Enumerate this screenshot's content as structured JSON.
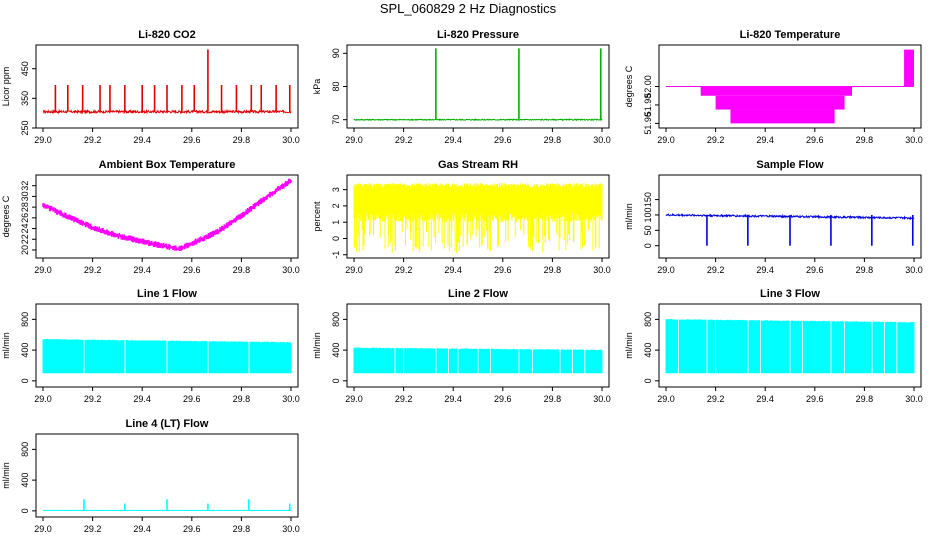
{
  "page": {
    "title": "SPL_060829  2 Hz Diagnostics"
  },
  "chart_data": [
    {
      "type": "line",
      "title": "Li-820 CO2",
      "xlabel": "",
      "ylabel": "Licor ppm",
      "xlim": [
        29.0,
        30.0
      ],
      "ylim": [
        250,
        530
      ],
      "xticks": [
        29.0,
        29.2,
        29.4,
        29.6,
        29.8,
        30.0
      ],
      "xtick_labels": [
        "29.0",
        "29.2",
        "29.4",
        "29.6",
        "29.8",
        "30.0"
      ],
      "yticks": [
        250,
        350,
        450
      ],
      "ytick_labels": [
        "250",
        "350",
        "450"
      ],
      "color": "#e00000",
      "style": "base",
      "series": [
        {
          "name": "CO2",
          "baseline": 305,
          "noise": 8,
          "drift": 0,
          "spikes": [
            [
              29.05,
              395
            ],
            [
              29.1,
              395
            ],
            [
              29.16,
              395
            ],
            [
              29.23,
              395
            ],
            [
              29.27,
              395
            ],
            [
              29.33,
              395
            ],
            [
              29.4,
              395
            ],
            [
              29.45,
              395
            ],
            [
              29.5,
              395
            ],
            [
              29.56,
              395
            ],
            [
              29.61,
              395
            ],
            [
              29.665,
              515
            ],
            [
              29.72,
              395
            ],
            [
              29.78,
              395
            ],
            [
              29.84,
              395
            ],
            [
              29.88,
              395
            ],
            [
              29.94,
              395
            ],
            [
              29.995,
              395
            ]
          ]
        }
      ]
    },
    {
      "type": "line",
      "title": "Li-820 Pressure",
      "xlabel": "",
      "ylabel": "kPa",
      "xlim": [
        29.0,
        30.0
      ],
      "ylim": [
        67.5,
        92.5
      ],
      "xticks": [
        29.0,
        29.2,
        29.4,
        29.6,
        29.8,
        30.0
      ],
      "xtick_labels": [
        "29.0",
        "29.2",
        "29.4",
        "29.6",
        "29.8",
        "30.0"
      ],
      "yticks": [
        70,
        80,
        90
      ],
      "ytick_labels": [
        "70",
        "80",
        "90"
      ],
      "color": "#00b000",
      "style": "base",
      "series": [
        {
          "name": "Pressure",
          "baseline": 70,
          "noise": 0.3,
          "drift": 0,
          "spikes": [
            [
              29.33,
              91.5
            ],
            [
              29.665,
              91.5
            ],
            [
              29.995,
              91.5
            ]
          ]
        }
      ]
    },
    {
      "type": "line",
      "title": "Li-820 Temperature",
      "xlabel": "",
      "ylabel": "degrees C",
      "xlim": [
        29.0,
        30.0
      ],
      "ylim": [
        51.955,
        52.045
      ],
      "xticks": [
        29.0,
        29.2,
        29.4,
        29.6,
        29.8,
        30.0
      ],
      "xtick_labels": [
        "29.0",
        "29.2",
        "29.4",
        "29.6",
        "29.8",
        "30.0"
      ],
      "yticks": [
        51.96,
        51.98,
        52.0
      ],
      "ytick_labels": [
        "51.96",
        "51.98",
        "52.00"
      ],
      "color": "#ff00ff",
      "style": "steps",
      "series": [
        {
          "name": "Temperature",
          "baseline": 52.0,
          "bands": [
            [
              29.14,
              29.75,
              51.99,
              52.0
            ],
            [
              29.2,
              29.72,
              51.975,
              51.99
            ],
            [
              29.26,
              29.68,
              51.96,
              51.975
            ],
            [
              29.96,
              30.0,
              52.0,
              52.04
            ]
          ]
        }
      ]
    },
    {
      "type": "line",
      "title": "Ambient Box Temperature",
      "xlabel": "",
      "ylabel": "degrees C",
      "xlim": [
        29.0,
        30.0
      ],
      "ylim": [
        18.5,
        34
      ],
      "xticks": [
        29.0,
        29.2,
        29.4,
        29.6,
        29.8,
        30.0
      ],
      "xtick_labels": [
        "29.0",
        "29.2",
        "29.4",
        "29.6",
        "29.8",
        "30.0"
      ],
      "yticks": [
        20,
        22,
        24,
        26,
        28,
        30,
        32
      ],
      "ytick_labels": [
        "20",
        "22",
        "24",
        "26",
        "28",
        "30",
        "32"
      ],
      "color": "#ff00ff",
      "style": "curve",
      "series": [
        {
          "name": "Box Temp",
          "points": [
            [
              29.0,
              28.4
            ],
            [
              29.1,
              26.2
            ],
            [
              29.2,
              24.2
            ],
            [
              29.3,
              22.7
            ],
            [
              29.4,
              21.6
            ],
            [
              29.5,
              20.6
            ],
            [
              29.55,
              20.2
            ],
            [
              29.6,
              21.2
            ],
            [
              29.7,
              23.3
            ],
            [
              29.8,
              26.4
            ],
            [
              29.9,
              29.8
            ],
            [
              30.0,
              33.0
            ]
          ],
          "noise": 0.6
        }
      ]
    },
    {
      "type": "line",
      "title": "Gas Stream RH",
      "xlabel": "",
      "ylabel": "percent",
      "xlim": [
        29.0,
        30.0
      ],
      "ylim": [
        -1.2,
        3.9
      ],
      "xticks": [
        29.0,
        29.2,
        29.4,
        29.6,
        29.8,
        30.0
      ],
      "xtick_labels": [
        "29.0",
        "29.2",
        "29.4",
        "29.6",
        "29.8",
        "30.0"
      ],
      "yticks": [
        -1,
        0,
        1,
        2,
        3
      ],
      "ytick_labels": [
        "-1",
        "0",
        "1",
        "2",
        "3"
      ],
      "color": "#ffff00",
      "style": "dense",
      "series": [
        {
          "name": "RH",
          "top": 3.4,
          "bottom": -0.9,
          "core_low": 1.6
        }
      ]
    },
    {
      "type": "line",
      "title": "Sample Flow",
      "xlabel": "",
      "ylabel": "ml/min",
      "xlim": [
        29.0,
        30.0
      ],
      "ylim": [
        -40,
        230
      ],
      "xticks": [
        29.0,
        29.2,
        29.4,
        29.6,
        29.8,
        30.0
      ],
      "xtick_labels": [
        "29.0",
        "29.2",
        "29.4",
        "29.6",
        "29.8",
        "30.0"
      ],
      "yticks": [
        0,
        50,
        100,
        150
      ],
      "ytick_labels": [
        "0",
        "50",
        "100",
        "150"
      ],
      "color": "#0000e0",
      "style": "base",
      "series": [
        {
          "name": "Sample Flow",
          "baseline": 100,
          "noise": 6,
          "drift": -10,
          "spikes": [
            [
              29.165,
              0
            ],
            [
              29.33,
              0
            ],
            [
              29.5,
              0
            ],
            [
              29.665,
              0
            ],
            [
              29.83,
              0
            ],
            [
              29.995,
              0
            ]
          ]
        }
      ]
    },
    {
      "type": "line",
      "title": "Line 1 Flow",
      "xlabel": "",
      "ylabel": "ml/min",
      "xlim": [
        29.0,
        30.0
      ],
      "ylim": [
        -80,
        1000
      ],
      "xticks": [
        29.0,
        29.2,
        29.4,
        29.6,
        29.8,
        30.0
      ],
      "xtick_labels": [
        "29.0",
        "29.2",
        "29.4",
        "29.6",
        "29.8",
        "30.0"
      ],
      "yticks": [
        0,
        400,
        800
      ],
      "ytick_labels": [
        "0",
        "400",
        "800"
      ],
      "color": "#00ffff",
      "style": "block",
      "series": [
        {
          "name": "Line 1",
          "top": 540,
          "bottom": 100,
          "top_end": 500,
          "gaps": [
            29.165,
            29.33,
            29.5,
            29.665,
            29.83
          ]
        }
      ]
    },
    {
      "type": "line",
      "title": "Line 2 Flow",
      "xlabel": "",
      "ylabel": "ml/min",
      "xlim": [
        29.0,
        30.0
      ],
      "ylim": [
        -80,
        1000
      ],
      "xticks": [
        29.0,
        29.2,
        29.4,
        29.6,
        29.8,
        30.0
      ],
      "xtick_labels": [
        "29.0",
        "29.2",
        "29.4",
        "29.6",
        "29.8",
        "30.0"
      ],
      "yticks": [
        0,
        400,
        800
      ],
      "ytick_labels": [
        "0",
        "400",
        "800"
      ],
      "color": "#00ffff",
      "style": "block",
      "series": [
        {
          "name": "Line 2",
          "top": 430,
          "bottom": 100,
          "top_end": 400,
          "gaps": [
            29.165,
            29.2,
            29.33,
            29.38,
            29.42,
            29.5,
            29.55,
            29.665,
            29.72,
            29.83,
            29.88,
            29.93
          ]
        }
      ]
    },
    {
      "type": "line",
      "title": "Line 3 Flow",
      "xlabel": "",
      "ylabel": "ml/min",
      "xlim": [
        29.0,
        30.0
      ],
      "ylim": [
        -80,
        1000
      ],
      "xticks": [
        29.0,
        29.2,
        29.4,
        29.6,
        29.8,
        30.0
      ],
      "xtick_labels": [
        "29.0",
        "29.2",
        "29.4",
        "29.6",
        "29.8",
        "30.0"
      ],
      "yticks": [
        0,
        400,
        800
      ],
      "ytick_labels": [
        "0",
        "400",
        "800"
      ],
      "color": "#00ffff",
      "style": "block",
      "series": [
        {
          "name": "Line 3",
          "top": 800,
          "bottom": 100,
          "top_end": 760,
          "gaps": [
            29.05,
            29.165,
            29.2,
            29.33,
            29.38,
            29.5,
            29.55,
            29.665,
            29.72,
            29.83,
            29.88,
            29.93
          ]
        }
      ]
    },
    {
      "type": "line",
      "title": "Line 4 (LT) Flow",
      "xlabel": "",
      "ylabel": "ml/min",
      "xlim": [
        29.0,
        30.0
      ],
      "ylim": [
        -80,
        1000
      ],
      "xticks": [
        29.0,
        29.2,
        29.4,
        29.6,
        29.8,
        30.0
      ],
      "xtick_labels": [
        "29.0",
        "29.2",
        "29.4",
        "29.6",
        "29.8",
        "30.0"
      ],
      "yticks": [
        0,
        400,
        800
      ],
      "ytick_labels": [
        "0",
        "400",
        "800"
      ],
      "color": "#00ffff",
      "style": "base",
      "series": [
        {
          "name": "Line 4",
          "baseline": 5,
          "noise": 2,
          "drift": 0,
          "spikes": [
            [
              29.165,
              150
            ],
            [
              29.33,
              95
            ],
            [
              29.5,
              150
            ],
            [
              29.665,
              95
            ],
            [
              29.83,
              150
            ],
            [
              29.995,
              95
            ]
          ]
        }
      ]
    }
  ]
}
